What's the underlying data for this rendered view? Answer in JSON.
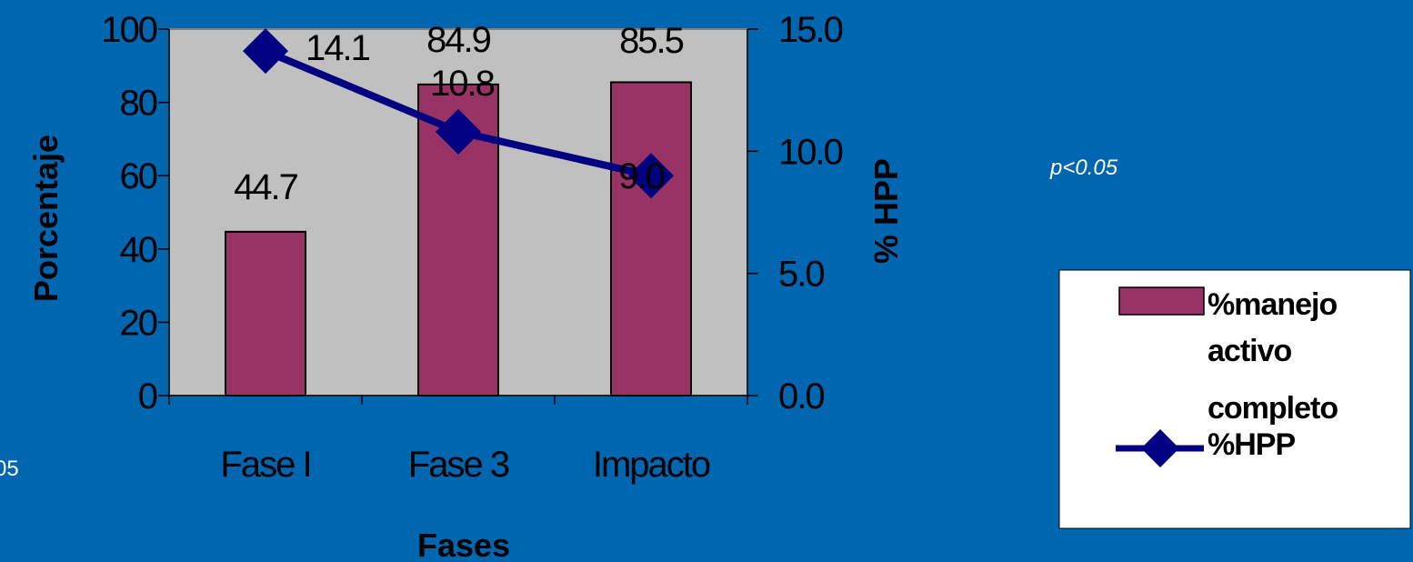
{
  "chart_data": {
    "type": "bar",
    "categories": [
      "Fase I",
      "Fase 3",
      "Impacto"
    ],
    "xlabel": "Fases",
    "ylabel": "Porcentaje",
    "y2label": "% HPP",
    "ylim": [
      0,
      100
    ],
    "yticks": [
      "0",
      "20",
      "40",
      "60",
      "80",
      "100"
    ],
    "y2lim": [
      0,
      15
    ],
    "y2ticks": [
      "0.0",
      "5.0",
      "10.0",
      "15.0"
    ],
    "grid": false,
    "legend_position": "right",
    "series": [
      {
        "name": "%manejo activo completo",
        "type": "bar",
        "axis": "left",
        "color": "#993366",
        "values": [
          44.7,
          84.9,
          85.5
        ],
        "labels": [
          "44.7",
          "84.9",
          "85.5"
        ]
      },
      {
        "name": "%HPP",
        "type": "line",
        "axis": "right",
        "color": "#000080",
        "marker": "diamond",
        "values": [
          14.1,
          10.8,
          9.0
        ],
        "labels": [
          "14.1",
          "10.8",
          "9.0"
        ]
      }
    ],
    "annotations": [
      "p<0.05",
      "05"
    ],
    "colors": {
      "background": "#0066b0",
      "plot_area": "#c0c0c0"
    }
  }
}
